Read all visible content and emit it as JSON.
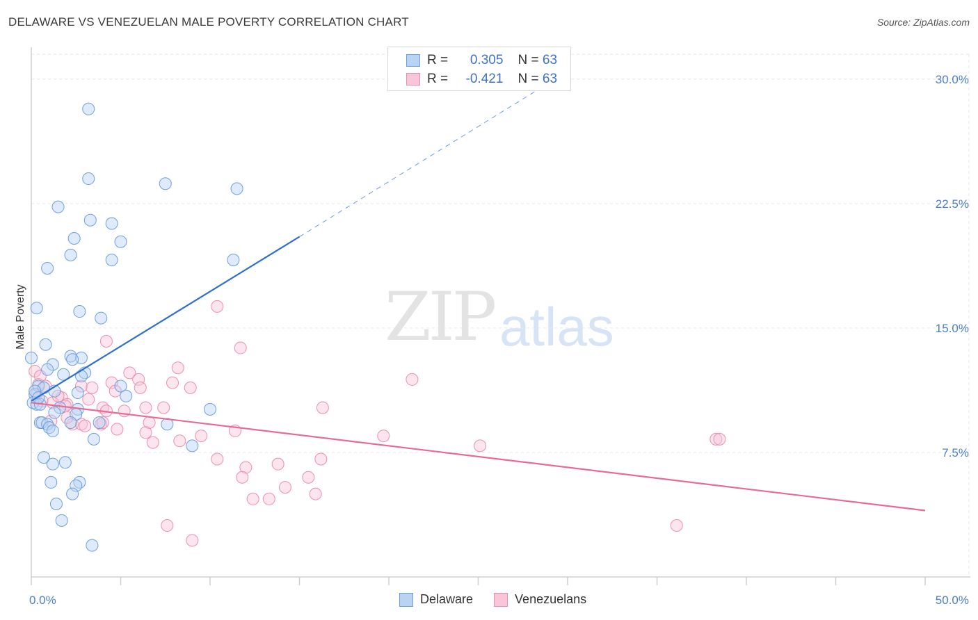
{
  "title": "DELAWARE VS VENEZUELAN MALE POVERTY CORRELATION CHART",
  "source": "Source: ZipAtlas.com",
  "watermark": {
    "part1": "ZIP",
    "part2": "atlas"
  },
  "legend": {
    "rows": [
      {
        "r_label": "R =",
        "r_value": "0.305",
        "n_label": "N =",
        "n_value": "63"
      },
      {
        "r_label": "R =",
        "r_value": "-0.421",
        "n_label": "N =",
        "n_value": "63"
      }
    ]
  },
  "bottom_legend": [
    "Delaware",
    "Venezuelans"
  ],
  "colors": {
    "delaware_fill": "#b9d3f3",
    "delaware_stroke": "#6f9ee0",
    "delaware_line": "#2e6fcf",
    "venez_fill": "#f8c6d6",
    "venez_stroke": "#ec8fae",
    "venez_line": "#e86a97",
    "grid": "#e6e6e6",
    "tick_text": "#4a7fd0"
  },
  "chart_data": {
    "type": "scatter",
    "title": "DELAWARE VS VENEZUELAN MALE POVERTY CORRELATION CHART",
    "xlabel": "",
    "ylabel": "Male Poverty",
    "xlim": [
      0,
      50
    ],
    "ylim": [
      0,
      31.5
    ],
    "x_ticks": [
      0,
      50
    ],
    "x_tick_labels": [
      "0.0%",
      "50.0%"
    ],
    "y_ticks": [
      7.5,
      15,
      22.5,
      30
    ],
    "y_tick_labels": [
      "7.5%",
      "15.0%",
      "22.5%",
      "30.0%"
    ],
    "grid": true,
    "series": [
      {
        "name": "Delaware",
        "r": 0.305,
        "n": 63,
        "trend": {
          "x": [
            0,
            15
          ],
          "y": [
            10.6,
            20.5
          ],
          "dashed_to": {
            "x": 29,
            "y": 29.8
          }
        },
        "points": [
          [
            3.2,
            28.2
          ],
          [
            3.2,
            24.0
          ],
          [
            7.5,
            23.7
          ],
          [
            11.5,
            23.4
          ],
          [
            1.5,
            22.3
          ],
          [
            3.3,
            21.5
          ],
          [
            4.5,
            21.3
          ],
          [
            2.4,
            20.4
          ],
          [
            5.0,
            20.2
          ],
          [
            2.2,
            19.4
          ],
          [
            4.5,
            19.1
          ],
          [
            11.3,
            19.1
          ],
          [
            0.9,
            18.6
          ],
          [
            0.3,
            16.2
          ],
          [
            2.7,
            16.0
          ],
          [
            3.9,
            15.6
          ],
          [
            0.8,
            14.0
          ],
          [
            0.0,
            13.2
          ],
          [
            2.2,
            13.3
          ],
          [
            2.8,
            13.2
          ],
          [
            1.2,
            12.8
          ],
          [
            0.9,
            12.5
          ],
          [
            2.3,
            13.1
          ],
          [
            3.0,
            12.3
          ],
          [
            1.8,
            12.2
          ],
          [
            2.8,
            12.1
          ],
          [
            1.3,
            11.2
          ],
          [
            0.4,
            11.5
          ],
          [
            0.7,
            11.4
          ],
          [
            2.6,
            11.1
          ],
          [
            5.0,
            11.5
          ],
          [
            0.2,
            11.0
          ],
          [
            5.3,
            10.9
          ],
          [
            0.1,
            10.5
          ],
          [
            0.3,
            10.4
          ],
          [
            0.5,
            10.4
          ],
          [
            2.6,
            10.1
          ],
          [
            10.0,
            10.1
          ],
          [
            1.6,
            10.2
          ],
          [
            1.3,
            9.9
          ],
          [
            2.5,
            9.8
          ],
          [
            0.5,
            9.3
          ],
          [
            0.6,
            9.3
          ],
          [
            2.2,
            9.3
          ],
          [
            3.8,
            9.3
          ],
          [
            7.6,
            9.2
          ],
          [
            0.9,
            9.2
          ],
          [
            1.0,
            9.0
          ],
          [
            1.2,
            8.8
          ],
          [
            3.5,
            8.3
          ],
          [
            9.0,
            7.9
          ],
          [
            0.7,
            7.2
          ],
          [
            1.9,
            6.9
          ],
          [
            1.2,
            6.8
          ],
          [
            2.7,
            5.7
          ],
          [
            1.1,
            5.7
          ],
          [
            2.5,
            5.5
          ],
          [
            2.3,
            5.0
          ],
          [
            1.4,
            4.4
          ],
          [
            1.7,
            3.4
          ],
          [
            3.4,
            1.9
          ],
          [
            0.2,
            11.2
          ],
          [
            0.4,
            10.8
          ]
        ]
      },
      {
        "name": "Venezuelans",
        "r": -0.421,
        "n": 63,
        "trend": {
          "x": [
            0,
            50
          ],
          "y": [
            10.5,
            4.0
          ]
        },
        "points": [
          [
            10.4,
            16.3
          ],
          [
            4.2,
            14.2
          ],
          [
            11.7,
            13.8
          ],
          [
            8.2,
            12.6
          ],
          [
            0.2,
            12.4
          ],
          [
            5.5,
            12.3
          ],
          [
            21.3,
            11.9
          ],
          [
            0.5,
            12.1
          ],
          [
            6.0,
            11.9
          ],
          [
            7.9,
            11.7
          ],
          [
            4.5,
            11.7
          ],
          [
            0.8,
            11.5
          ],
          [
            2.8,
            11.5
          ],
          [
            3.4,
            11.4
          ],
          [
            6.1,
            11.4
          ],
          [
            8.9,
            11.4
          ],
          [
            4.7,
            11.2
          ],
          [
            0.3,
            11.0
          ],
          [
            1.7,
            10.8
          ],
          [
            2.0,
            10.4
          ],
          [
            3.2,
            10.7
          ],
          [
            1.2,
            10.5
          ],
          [
            1.9,
            10.3
          ],
          [
            4.0,
            10.2
          ],
          [
            6.4,
            10.2
          ],
          [
            7.4,
            10.2
          ],
          [
            16.3,
            10.2
          ],
          [
            4.2,
            10.0
          ],
          [
            5.2,
            10.0
          ],
          [
            2.3,
            9.2
          ],
          [
            2.8,
            9.2
          ],
          [
            3.0,
            9.1
          ],
          [
            3.9,
            9.2
          ],
          [
            4.0,
            9.3
          ],
          [
            6.6,
            9.3
          ],
          [
            4.8,
            8.9
          ],
          [
            6.4,
            8.7
          ],
          [
            11.4,
            8.8
          ],
          [
            9.5,
            8.5
          ],
          [
            19.7,
            8.5
          ],
          [
            38.3,
            8.3
          ],
          [
            38.5,
            8.3
          ],
          [
            6.8,
            8.1
          ],
          [
            8.3,
            8.2
          ],
          [
            25.1,
            7.9
          ],
          [
            10.4,
            7.1
          ],
          [
            16.2,
            7.1
          ],
          [
            13.8,
            6.8
          ],
          [
            12.0,
            6.6
          ],
          [
            11.8,
            6.0
          ],
          [
            15.5,
            6.0
          ],
          [
            14.2,
            5.4
          ],
          [
            15.9,
            5.0
          ],
          [
            12.4,
            4.7
          ],
          [
            13.3,
            4.7
          ],
          [
            7.6,
            3.1
          ],
          [
            36.1,
            3.1
          ],
          [
            9.0,
            2.2
          ],
          [
            0.4,
            11.6
          ],
          [
            1.5,
            10.9
          ],
          [
            0.6,
            10.6
          ],
          [
            2.0,
            9.6
          ],
          [
            1.1,
            9.4
          ]
        ]
      }
    ]
  }
}
